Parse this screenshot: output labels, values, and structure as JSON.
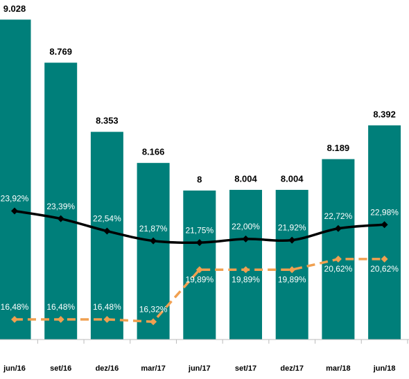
{
  "chart_data": {
    "type": "bar",
    "categories": [
      "jun/16",
      "set/16",
      "dez/16",
      "mar/17",
      "jun/17",
      "set/17",
      "dez/17",
      "mar/18",
      "jun/18"
    ],
    "values": [
      9.028,
      8.769,
      8.353,
      8.166,
      8.0,
      8.004,
      8.004,
      8.189,
      8.392
    ],
    "color": "#007f7a",
    "ylim": [
      7.104,
      9.146
    ],
    "y2lim": [
      15.1,
      38.4
    ],
    "series": [
      {
        "type": "line",
        "axis": "y2",
        "color": "#000000",
        "dashed": false,
        "values": [
          23.92,
          23.39,
          22.54,
          21.87,
          21.75,
          22.0,
          21.92,
          22.72,
          22.98
        ],
        "value_labels": [
          "23,92%",
          "23,39%",
          "22,54%",
          "21,87%",
          "21,75%",
          "22,00%",
          "21,92%",
          "22,72%",
          "22,98%"
        ]
      },
      {
        "type": "line",
        "axis": "y2",
        "color": "#f0a050",
        "dashed": true,
        "values": [
          16.48,
          16.48,
          16.48,
          16.32,
          19.89,
          19.89,
          19.89,
          20.62,
          20.62
        ],
        "value_labels": [
          "16,48%",
          "16,48%",
          "16,48%",
          "16,32%",
          "19,89%",
          "19,89%",
          "19,89%",
          "20,62%",
          "20,62%"
        ]
      }
    ]
  }
}
